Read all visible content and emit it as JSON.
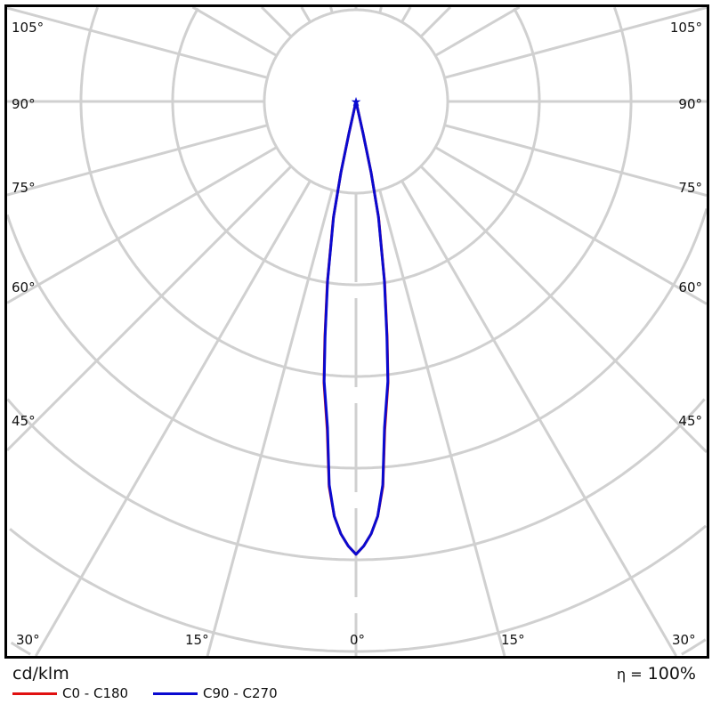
{
  "chart_data": {
    "type": "polar",
    "unit_label": "cd/klm",
    "efficiency_label": "η =",
    "efficiency_value": "100%",
    "angle_labels_left": [
      "105°",
      "90°",
      "75°",
      "60°",
      "45°",
      "30°"
    ],
    "angle_labels_bottom": [
      "30°",
      "15°",
      "0°",
      "15°",
      "30°"
    ],
    "angle_labels_right": [
      "105°",
      "90°",
      "75°",
      "60°",
      "45°",
      "30°"
    ],
    "grid": true,
    "angular_grid_step_deg": 15,
    "radial_unit": "relative (grid rings, unlabeled)",
    "series": [
      {
        "name": "C0 - C180",
        "color": "#e01010",
        "points": [
          [
            0,
            4.94
          ],
          [
            1,
            4.85
          ],
          [
            2,
            4.72
          ],
          [
            3,
            4.53
          ],
          [
            4,
            4.21
          ],
          [
            5,
            3.6
          ],
          [
            6.5,
            3.09
          ],
          [
            7.5,
            2.6
          ],
          [
            9,
            2.0
          ],
          [
            11,
            1.3
          ],
          [
            12,
            0.8
          ],
          [
            12.5,
            0.36
          ],
          [
            13,
            0
          ]
        ]
      },
      {
        "name": "C90 - C270",
        "color": "#0a0ad0",
        "points": [
          [
            0,
            4.94
          ],
          [
            1,
            4.85
          ],
          [
            2,
            4.72
          ],
          [
            3,
            4.53
          ],
          [
            4,
            4.19
          ],
          [
            5,
            3.57
          ],
          [
            6.5,
            3.07
          ],
          [
            7.5,
            2.58
          ],
          [
            9,
            1.98
          ],
          [
            11,
            1.28
          ],
          [
            12,
            0.79
          ],
          [
            12.5,
            0.35
          ],
          [
            13,
            0
          ]
        ]
      }
    ],
    "legend_position": "bottom-left"
  }
}
